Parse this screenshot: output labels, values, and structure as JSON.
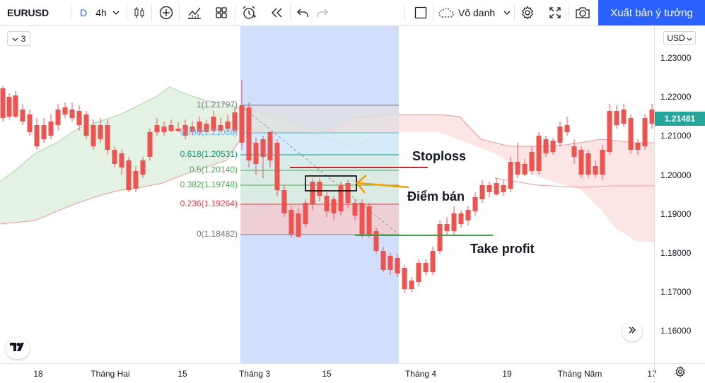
{
  "toolbar": {
    "symbol": "EURUSD",
    "interval_letter": "D",
    "interval": "4h",
    "layout_name": "Vô danh",
    "publish_label": "Xuất bản ý tưởng",
    "icons": [
      "chevron-down-icon",
      "candles-icon",
      "plus-circle-icon",
      "indicators-icon",
      "templates-icon",
      "alert-icon",
      "replay-icon",
      "undo-icon",
      "redo-icon",
      "square-icon",
      "cloud-icon",
      "gear-icon",
      "fullscreen-icon",
      "camera-icon"
    ]
  },
  "chart": {
    "collapse_count": "3",
    "fib_levels": [
      {
        "label": "1(1.21797)",
        "color": "#787b86"
      },
      {
        "label": "0.786(1.21088)",
        "color": "#64b5f6"
      },
      {
        "label": "0.618(1.20531)",
        "color": "#089981"
      },
      {
        "label": "0.5(1.20140)",
        "color": "#4caf50"
      },
      {
        "label": "0.382(1.19748)",
        "color": "#4caf50"
      },
      {
        "label": "0.236(1.19264)",
        "color": "#f23645"
      },
      {
        "label": "0(1.18482)",
        "color": "#787b86"
      }
    ],
    "annotations": {
      "stoploss": "Stoploss",
      "entry": "Điểm bán",
      "take_profit": "Take profit"
    },
    "colors": {
      "up": "#26a69a",
      "down": "#ef5350",
      "accent": "#2962ff"
    }
  },
  "price_axis": {
    "currency": "USD",
    "current_price": "1.21481",
    "labels": [
      "1.23000",
      "1.22000",
      "1.21000",
      "1.20000",
      "1.19000",
      "1.18000",
      "1.17000",
      "1.16000"
    ]
  },
  "time_axis": {
    "labels": [
      "18",
      "Tháng Hai",
      "15",
      "Tháng 3",
      "15",
      "Tháng 4",
      "19",
      "Tháng Năm",
      "17"
    ]
  }
}
